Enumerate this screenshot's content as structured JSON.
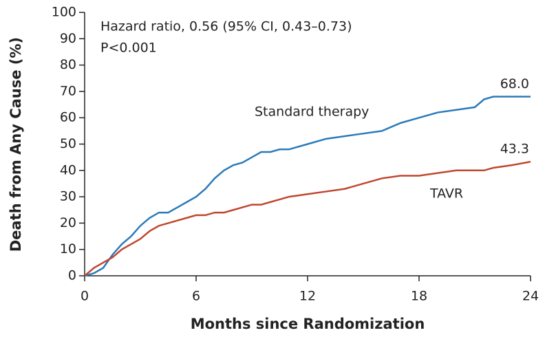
{
  "chart_data": {
    "type": "line",
    "annotations": [
      "Hazard ratio, 0.56 (95% CI, 0.43–0.73)",
      "P<0.001"
    ],
    "x_label": "Months since Randomization",
    "y_label": "Death from Any Cause (%)",
    "x": [
      0,
      0.5,
      1,
      1.5,
      2,
      2.5,
      3,
      3.5,
      4,
      4.5,
      5,
      5.5,
      6,
      6.5,
      7,
      7.5,
      8,
      8.5,
      9,
      9.5,
      10,
      10.5,
      11,
      12,
      13,
      14,
      15,
      16,
      17,
      18,
      19,
      20,
      21,
      21.5,
      22,
      23,
      24
    ],
    "series": [
      {
        "name": "Standard therapy",
        "color": "#2a7ab9",
        "values": [
          0,
          1,
          3,
          8,
          12,
          15,
          19,
          22,
          24,
          24,
          26,
          28,
          30,
          33,
          37,
          40,
          42,
          43,
          45,
          47,
          47,
          48,
          48,
          50,
          52,
          53,
          54,
          55,
          58,
          60,
          62,
          63,
          64,
          67,
          68,
          68,
          68.0
        ],
        "value_labels": [
          null,
          null,
          null,
          null,
          null,
          null,
          null,
          null,
          null,
          null,
          null,
          null,
          null,
          null,
          null,
          null,
          null,
          null,
          null,
          null,
          null,
          null,
          null,
          null,
          null,
          null,
          null,
          null,
          null,
          null,
          null,
          null,
          null,
          null,
          null,
          null,
          "68.0"
        ]
      },
      {
        "name": "TAVR",
        "color": "#c0462f",
        "values": [
          0,
          3,
          5,
          7,
          10,
          12,
          14,
          17,
          19,
          20,
          21,
          22,
          23,
          23,
          24,
          24,
          25,
          26,
          27,
          27,
          28,
          29,
          30,
          31,
          32,
          33,
          35,
          37,
          38,
          38,
          39,
          40,
          40,
          40,
          41,
          42,
          43.3
        ],
        "value_labels": [
          null,
          null,
          null,
          null,
          null,
          null,
          null,
          null,
          null,
          null,
          null,
          null,
          null,
          null,
          null,
          null,
          null,
          null,
          null,
          null,
          null,
          null,
          null,
          null,
          null,
          null,
          null,
          null,
          null,
          null,
          null,
          null,
          null,
          null,
          null,
          null,
          "43.3"
        ]
      }
    ],
    "xlim": [
      0,
      24
    ],
    "xticks": [
      0,
      6,
      12,
      18,
      24
    ],
    "ylim": [
      0,
      100
    ],
    "yticks": [
      0,
      10,
      20,
      30,
      40,
      50,
      60,
      70,
      80,
      90,
      100
    ]
  }
}
